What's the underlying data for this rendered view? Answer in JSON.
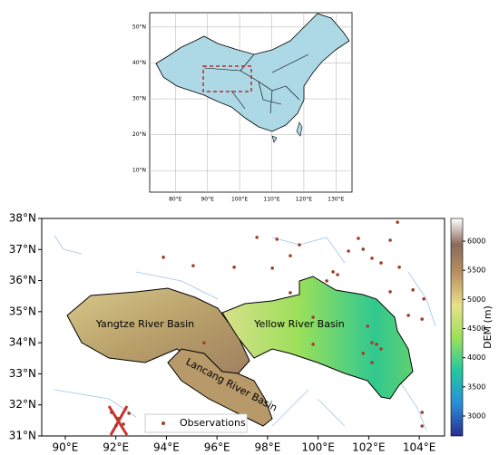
{
  "inset": {
    "xlim": [
      72,
      135
    ],
    "ylim": [
      4,
      54
    ],
    "xticks": [
      {
        "value": 80,
        "label": "80°E"
      },
      {
        "value": 90,
        "label": "90°E"
      },
      {
        "value": 100,
        "label": "100°E"
      },
      {
        "value": 110,
        "label": "110°E"
      },
      {
        "value": 120,
        "label": "120°E"
      },
      {
        "value": 130,
        "label": "130°E"
      }
    ],
    "yticks": [
      {
        "value": 50,
        "label": "50°N"
      },
      {
        "value": 40,
        "label": "40°N"
      },
      {
        "value": 30,
        "label": "30°N"
      },
      {
        "value": 20,
        "label": "20°N"
      },
      {
        "value": 10,
        "label": "10°N"
      }
    ]
  },
  "main": {
    "xlim": [
      89.07,
      105
    ],
    "ylim": [
      31,
      38
    ],
    "xticks": [
      {
        "value": 90,
        "label": "90°E"
      },
      {
        "value": 92,
        "label": "92°E"
      },
      {
        "value": 94,
        "label": "94°E"
      },
      {
        "value": 96,
        "label": "96°E"
      },
      {
        "value": 98,
        "label": "98°E"
      },
      {
        "value": 100,
        "label": "100°E"
      },
      {
        "value": 102,
        "label": "102°E"
      },
      {
        "value": 104,
        "label": "104°E"
      }
    ],
    "yticks": [
      {
        "value": 38,
        "label": "38°N"
      },
      {
        "value": 37,
        "label": "37°N"
      },
      {
        "value": 36,
        "label": "36°N"
      },
      {
        "value": 35,
        "label": "35°N"
      },
      {
        "value": 34,
        "label": "34°N"
      },
      {
        "value": 33,
        "label": "33°N"
      },
      {
        "value": 32,
        "label": "32°N"
      },
      {
        "value": 31,
        "label": "31°N"
      }
    ],
    "basins": [
      "Yangtze River Basin",
      "Yellow River Basin",
      "Lancang River Basin"
    ],
    "legend": "Observations",
    "observations": [
      [
        93.88,
        36.75
      ],
      [
        95.06,
        36.48
      ],
      [
        96.68,
        36.43
      ],
      [
        97.58,
        37.39
      ],
      [
        98.37,
        37.33
      ],
      [
        99.26,
        37.15
      ],
      [
        98.19,
        36.4
      ],
      [
        98.9,
        36.8
      ],
      [
        101.2,
        36.95
      ],
      [
        101.59,
        37.36
      ],
      [
        101.78,
        37.01
      ],
      [
        102.13,
        36.72
      ],
      [
        102.49,
        36.57
      ],
      [
        103.14,
        37.88
      ],
      [
        102.85,
        37.3
      ],
      [
        103.21,
        36.43
      ],
      [
        100.59,
        36.28
      ],
      [
        100.77,
        36.19
      ],
      [
        100.34,
        35.99
      ],
      [
        102.85,
        35.64
      ],
      [
        103.75,
        35.7
      ],
      [
        104.18,
        35.41
      ],
      [
        103.57,
        34.88
      ],
      [
        104.11,
        34.76
      ],
      [
        102.31,
        33.95
      ],
      [
        102.49,
        33.8
      ],
      [
        102.13,
        34.0
      ],
      [
        101.78,
        33.66
      ],
      [
        102.13,
        33.36
      ],
      [
        101.96,
        34.53
      ],
      [
        98.9,
        35.61
      ],
      [
        99.8,
        34.82
      ],
      [
        95.49,
        34.0
      ],
      [
        99.8,
        33.95
      ],
      [
        92.09,
        31.56
      ],
      [
        92.01,
        31.33
      ],
      [
        91.83,
        31.76
      ],
      [
        92.3,
        31.38
      ],
      [
        92.52,
        31.73
      ],
      [
        104.11,
        31.76
      ],
      [
        104.11,
        31.32
      ]
    ]
  },
  "colorbar": {
    "label": "DEM (m)",
    "range": [
      2658,
      6389
    ],
    "ticks": [
      3000,
      3500,
      4000,
      4500,
      5000,
      5500,
      6000
    ]
  }
}
